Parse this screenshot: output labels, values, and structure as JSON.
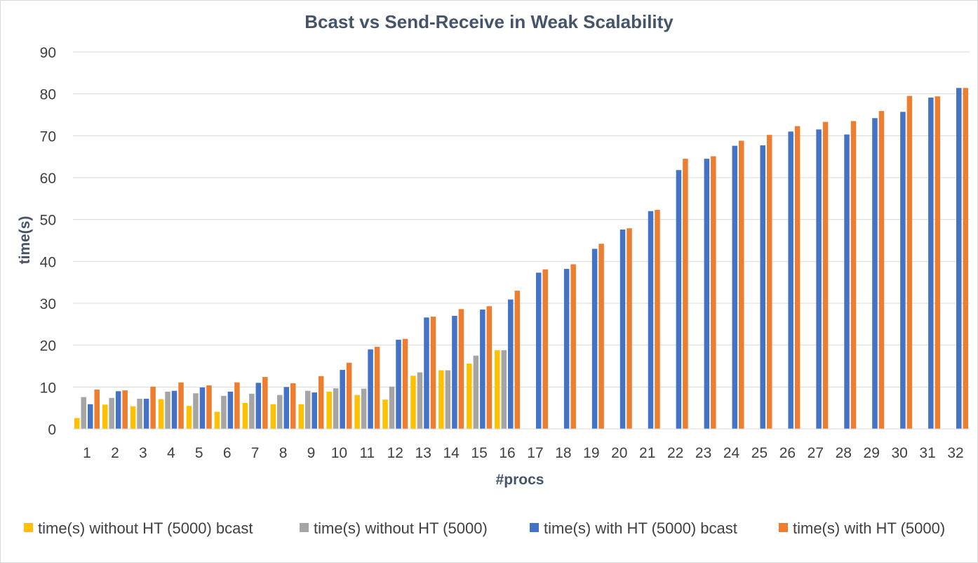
{
  "chart_data": {
    "type": "bar",
    "title": "Bcast vs Send-Receive in Weak Scalability",
    "xlabel": "#procs",
    "ylabel": "time(s)",
    "ylim": [
      0,
      90
    ],
    "yticks": [
      0,
      10,
      20,
      30,
      40,
      50,
      60,
      70,
      80,
      90
    ],
    "grid": true,
    "legend_position": "bottom",
    "categories": [
      "1",
      "2",
      "3",
      "4",
      "5",
      "6",
      "7",
      "8",
      "9",
      "10",
      "11",
      "12",
      "13",
      "14",
      "15",
      "16",
      "17",
      "18",
      "19",
      "20",
      "21",
      "22",
      "23",
      "24",
      "25",
      "26",
      "27",
      "28",
      "29",
      "30",
      "31",
      "32"
    ],
    "series": [
      {
        "name": "time(s) without HT (5000) bcast",
        "color": "#ffc000",
        "values": [
          2.6,
          5.8,
          5.4,
          7.1,
          5.5,
          4.1,
          6.2,
          5.9,
          5.9,
          8.9,
          8.1,
          7.0,
          12.7,
          14.0,
          15.6,
          18.8,
          null,
          null,
          null,
          null,
          null,
          null,
          null,
          null,
          null,
          null,
          null,
          null,
          null,
          null,
          null,
          null
        ]
      },
      {
        "name": "time(s) without HT (5000)",
        "color": "#a5a5a5",
        "values": [
          7.6,
          7.4,
          7.2,
          8.9,
          8.5,
          7.9,
          8.4,
          8.1,
          9.1,
          9.7,
          9.6,
          10.1,
          13.5,
          14.0,
          17.5,
          18.8,
          null,
          null,
          null,
          null,
          null,
          null,
          null,
          null,
          null,
          null,
          null,
          null,
          null,
          null,
          null,
          null
        ]
      },
      {
        "name": "time(s) with HT (5000) bcast",
        "color": "#4472c4",
        "values": [
          5.9,
          9.0,
          7.2,
          9.1,
          9.9,
          8.9,
          11.0,
          10.0,
          8.7,
          14.1,
          19.0,
          21.3,
          26.6,
          27.0,
          28.5,
          30.9,
          37.3,
          38.2,
          43.0,
          47.6,
          52.0,
          61.8,
          64.5,
          67.6,
          67.7,
          71.0,
          71.5,
          70.3,
          74.2,
          75.7,
          79.1,
          81.4
        ]
      },
      {
        "name": "time(s) with HT (5000)",
        "color": "#ed7d31",
        "values": [
          9.4,
          9.2,
          10.1,
          11.1,
          10.4,
          11.1,
          12.4,
          10.9,
          12.6,
          15.8,
          19.6,
          21.5,
          26.8,
          28.6,
          29.3,
          33.0,
          38.1,
          39.3,
          44.2,
          47.9,
          52.3,
          64.5,
          65.1,
          68.8,
          70.2,
          72.3,
          73.3,
          73.5,
          75.9,
          79.5,
          79.4,
          81.4
        ]
      }
    ]
  }
}
